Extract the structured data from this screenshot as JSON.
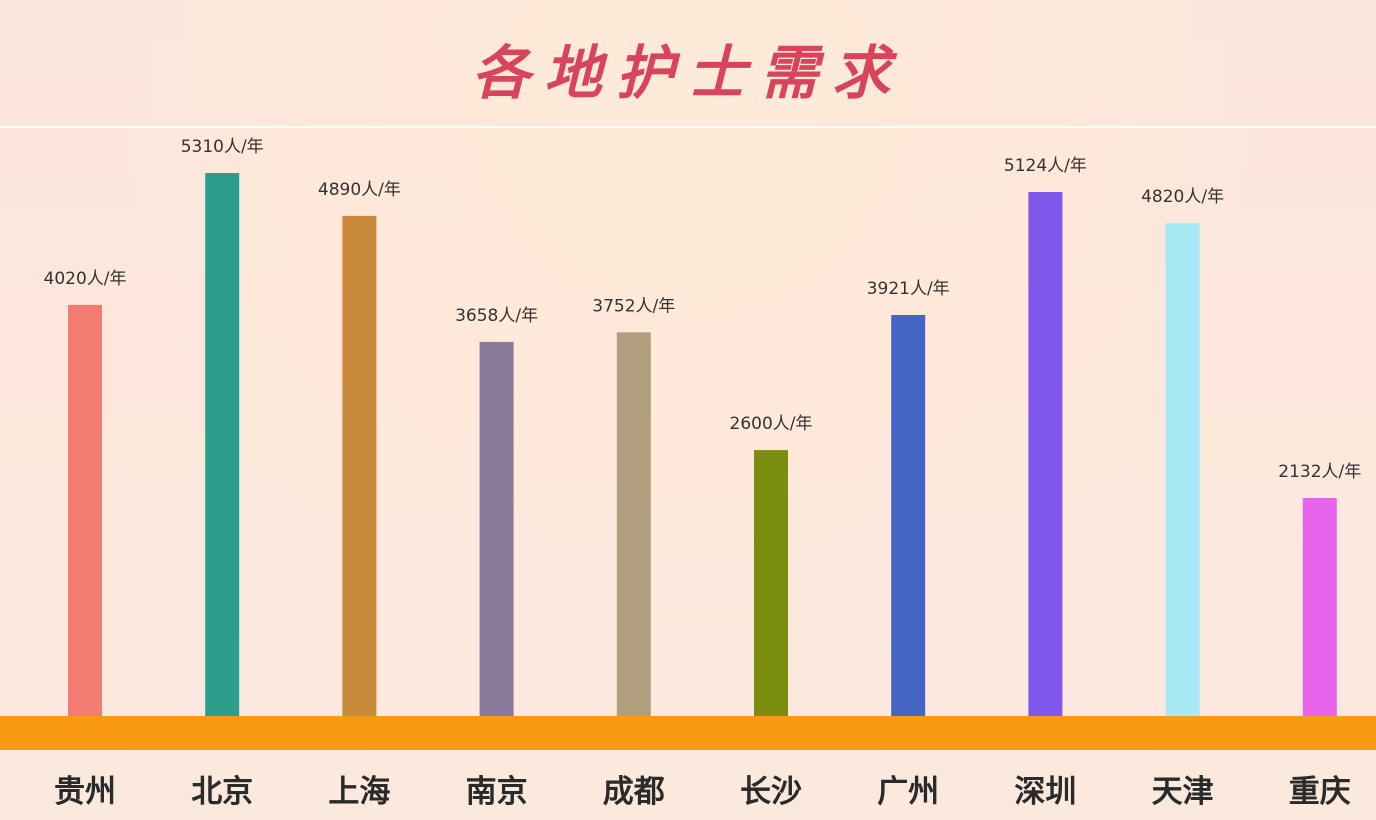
{
  "header": {
    "title": "各地护士需求"
  },
  "chart_data": {
    "type": "bar",
    "title": "各地护士需求",
    "xlabel": "",
    "ylabel": "",
    "unit": "人/年",
    "grid": false,
    "ylim": [
      0,
      5310
    ],
    "categories": [
      "贵州",
      "北京",
      "上海",
      "南京",
      "成都",
      "长沙",
      "广州",
      "深圳",
      "天津",
      "重庆"
    ],
    "values": [
      4020,
      5310,
      4890,
      3658,
      3752,
      2600,
      3921,
      5124,
      4820,
      2132
    ],
    "data_labels": [
      "4020人/年",
      "5310人/年",
      "4890人/年",
      "3658人/年",
      "3752人/年",
      "2600人/年",
      "3921人/年",
      "5124人/年",
      "4820人/年",
      "2132人/年"
    ],
    "colors": [
      "#f47b72",
      "#2b9e8c",
      "#c98a3a",
      "#8a7a9c",
      "#b19e7f",
      "#7a8d0f",
      "#4565c4",
      "#7f57ea",
      "#a6e9f4",
      "#e764ea"
    ],
    "baseline_color": "#fa9a12"
  }
}
